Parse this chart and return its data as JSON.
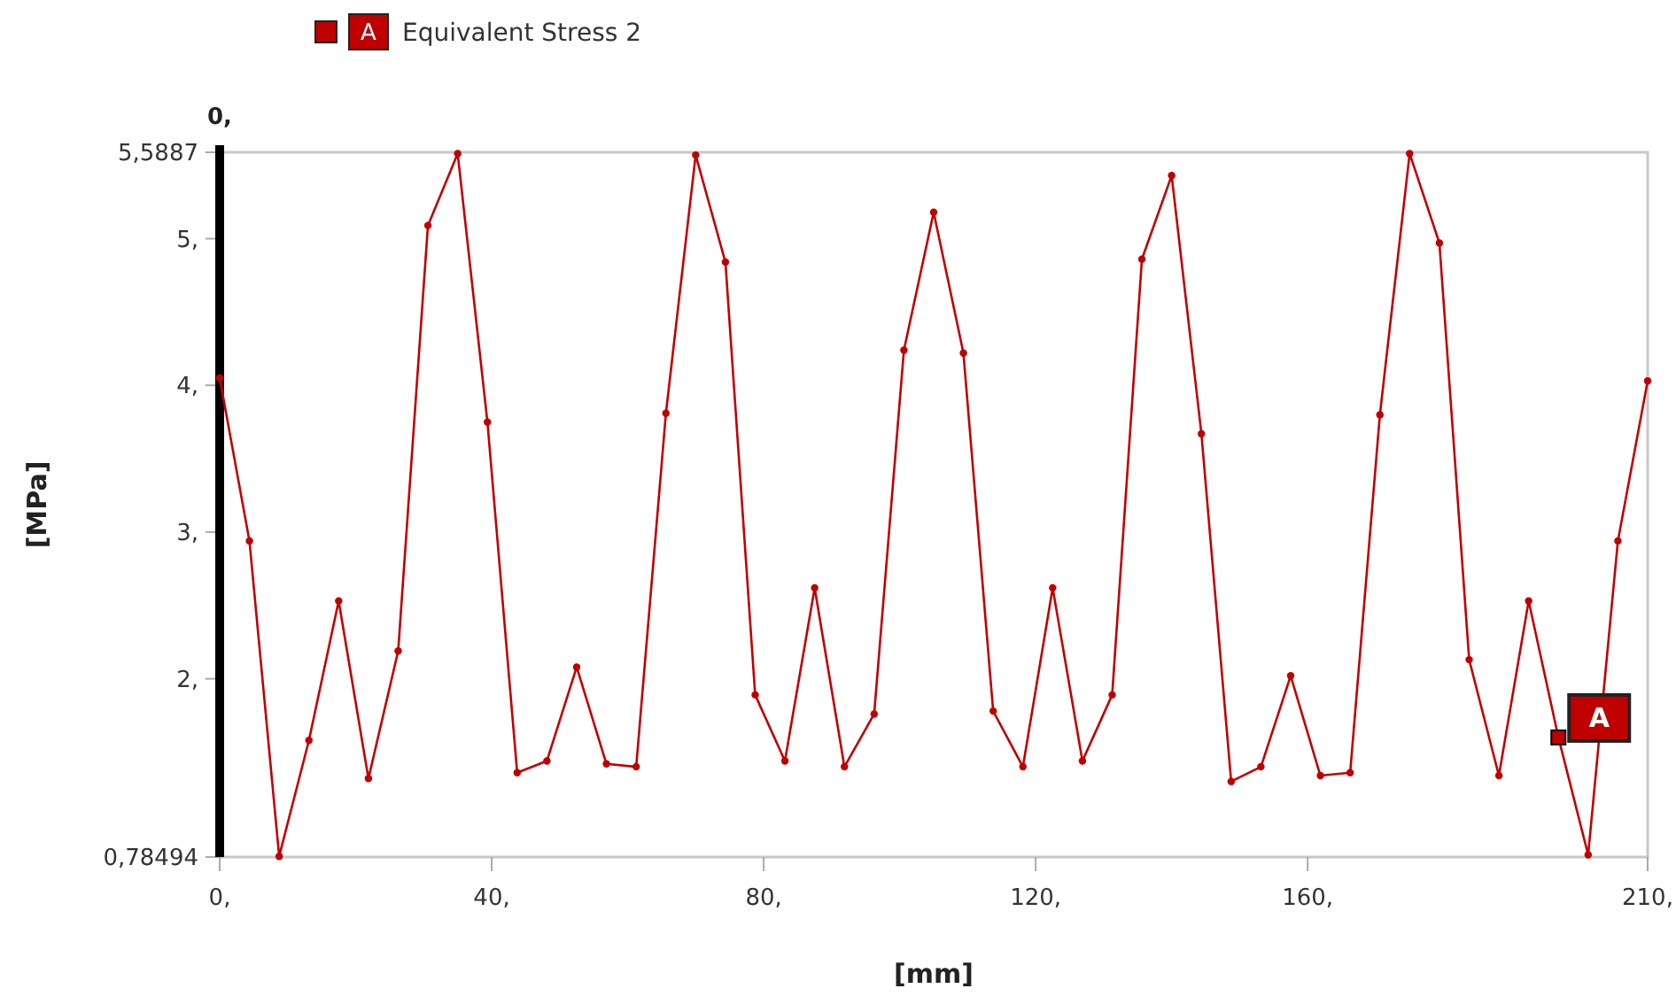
{
  "chart_data": {
    "type": "line",
    "xlabel": "[mm]",
    "ylabel": "[MPa]",
    "legend": "top",
    "marker": "circle",
    "line_style": "solid",
    "x": [
      0,
      4.375,
      8.75,
      13.125,
      17.5,
      21.875,
      26.25,
      30.625,
      35,
      39.375,
      43.75,
      48.125,
      52.5,
      56.875,
      61.25,
      65.625,
      70,
      74.375,
      78.75,
      83.125,
      87.5,
      91.875,
      96.25,
      100.625,
      105,
      109.375,
      113.75,
      118.125,
      122.5,
      126.875,
      131.25,
      135.625,
      140,
      144.375,
      148.75,
      153.125,
      157.5,
      161.875,
      166.25,
      170.625,
      175,
      179.375,
      183.75,
      188.125,
      192.5,
      196.875,
      201.25,
      205.625,
      210
    ],
    "series": [
      {
        "name": "Equivalent Stress 2",
        "color": "#c00000",
        "values": [
          4.05,
          2.94,
          0.79,
          1.58,
          2.53,
          1.32,
          2.19,
          5.09,
          5.58,
          3.75,
          1.36,
          1.44,
          2.08,
          1.42,
          1.4,
          3.81,
          5.57,
          4.84,
          1.89,
          1.44,
          2.62,
          1.4,
          1.76,
          4.24,
          5.18,
          4.22,
          1.78,
          1.4,
          2.62,
          1.44,
          1.89,
          4.86,
          5.43,
          3.67,
          1.3,
          1.4,
          2.02,
          1.34,
          1.36,
          3.8,
          5.58,
          4.97,
          2.13,
          1.34,
          2.53,
          1.6,
          0.8,
          2.94,
          4.03
        ]
      }
    ],
    "xlim": [
      0,
      210
    ],
    "xticks": [
      {
        "value": 0,
        "label": "0,"
      },
      {
        "value": 40,
        "label": "40,"
      },
      {
        "value": 80,
        "label": "80,"
      },
      {
        "value": 120,
        "label": "120,"
      },
      {
        "value": 160,
        "label": "160,"
      },
      {
        "value": 210,
        "label": "210,"
      }
    ],
    "ylim": [
      0.78494,
      5.5887
    ],
    "yticks": [
      {
        "value": 0.78494,
        "label": "0,78494"
      },
      {
        "value": 2,
        "label": "2,"
      },
      {
        "value": 3,
        "label": "3,"
      },
      {
        "value": 4,
        "label": "4,"
      },
      {
        "value": 5,
        "label": "5,"
      },
      {
        "value": 5.5887,
        "label": "5,5887"
      }
    ],
    "grid": false,
    "annotations": [
      "0,",
      {
        "text": "A",
        "x": 196.875,
        "y": 1.6
      }
    ]
  }
}
